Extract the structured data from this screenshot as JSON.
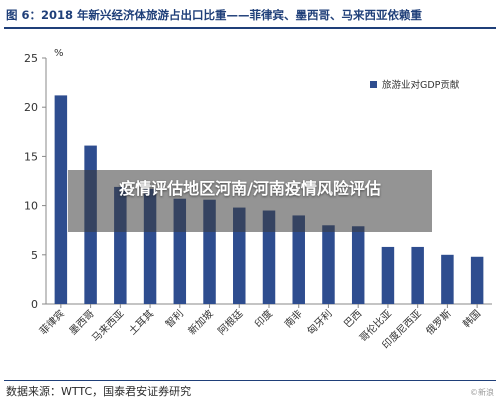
{
  "figure": {
    "caption": "图 6：2018 年新兴经济体旅游占出口比重——菲律宾、墨西哥、马来西亚依赖重",
    "source": "数据来源：WTTC，国泰君安证券研究",
    "overlay_title": "疫情评估地区河南/河南疫情风险评估",
    "watermark": "©新浪"
  },
  "colors": {
    "bar": "#2e4d8f",
    "axis": "#888888",
    "accent": "#1f3f79"
  },
  "chart_data": {
    "type": "bar",
    "title": "",
    "unit_label": "%",
    "xlabel": "",
    "ylabel": "",
    "ylim": [
      0,
      25
    ],
    "yticks": [
      0,
      5,
      10,
      15,
      20,
      25
    ],
    "grid": false,
    "legend_position": "top-right",
    "categories": [
      "菲律宾",
      "墨西哥",
      "马来西亚",
      "土耳其",
      "智利",
      "新加坡",
      "阿根廷",
      "印度",
      "南非",
      "匈牙利",
      "巴西",
      "哥伦比亚",
      "印度尼西亚",
      "俄罗斯",
      "韩国"
    ],
    "series": [
      {
        "name": "旅游业对GDP贡献",
        "values": [
          21.2,
          16.1,
          11.9,
          11.7,
          10.7,
          10.6,
          9.8,
          9.5,
          9.0,
          8.0,
          7.9,
          5.8,
          5.8,
          5.0,
          4.8
        ]
      }
    ]
  }
}
